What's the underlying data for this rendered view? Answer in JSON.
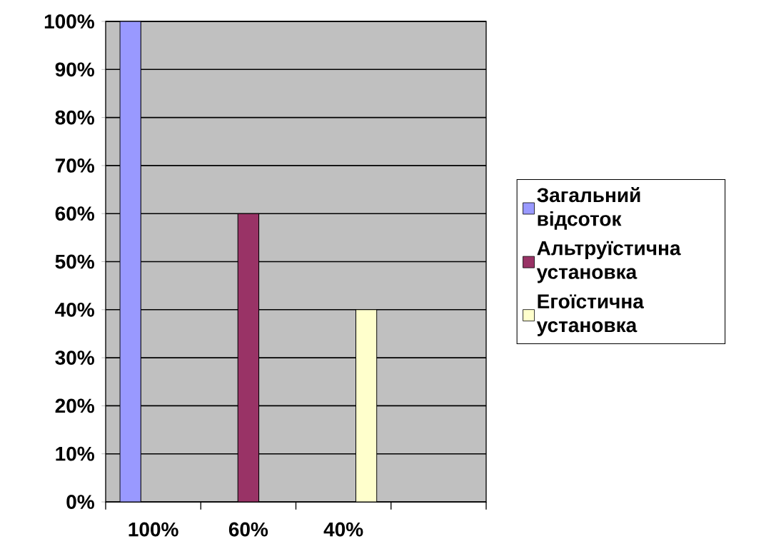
{
  "chart_data": {
    "type": "bar",
    "categories": [
      "100%",
      "60%",
      "40%",
      null
    ],
    "series": [
      {
        "name": "Загальний відсоток",
        "color": "#9999ff",
        "values": [
          100,
          null,
          null,
          null
        ]
      },
      {
        "name": "Альтруїстична установка",
        "color": "#993366",
        "values": [
          null,
          60,
          null,
          null
        ]
      },
      {
        "name": "Егоїстична установка",
        "color": "#ffffcc",
        "values": [
          null,
          null,
          40,
          null
        ]
      }
    ],
    "ylim": [
      0,
      100
    ],
    "yticks": [
      {
        "value": 0,
        "label": "0%"
      },
      {
        "value": 10,
        "label": "10%"
      },
      {
        "value": 20,
        "label": "20%"
      },
      {
        "value": 30,
        "label": "30%"
      },
      {
        "value": 40,
        "label": "40%"
      },
      {
        "value": 50,
        "label": "50%"
      },
      {
        "value": 60,
        "label": "60%"
      },
      {
        "value": 70,
        "label": "70%"
      },
      {
        "value": 80,
        "label": "80%"
      },
      {
        "value": 90,
        "label": "90%"
      },
      {
        "value": 100,
        "label": "100%"
      }
    ],
    "grid": "y",
    "legend": "right"
  }
}
